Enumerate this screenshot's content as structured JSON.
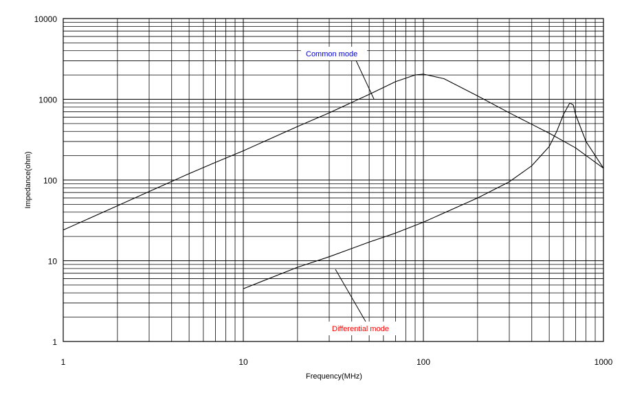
{
  "chart_data": {
    "type": "line",
    "xlabel": "Frequency(MHz)",
    "ylabel": "Impedance(ohm)",
    "xscale": "log",
    "yscale": "log",
    "xlim": [
      1,
      1000
    ],
    "ylim": [
      1,
      10000
    ],
    "grid": true,
    "xtick_labels": [
      "1",
      "10",
      "100",
      "1000"
    ],
    "ytick_labels": [
      "1",
      "10",
      "100",
      "1000",
      "10000"
    ],
    "series": [
      {
        "name": "Common mode",
        "color": "#000000",
        "x": [
          1,
          2,
          3,
          5,
          7,
          10,
          20,
          30,
          50,
          70,
          90,
          100,
          130,
          200,
          300,
          500,
          700,
          1000
        ],
        "y": [
          24,
          48,
          72,
          120,
          165,
          230,
          460,
          680,
          1150,
          1650,
          2000,
          2050,
          1800,
          1100,
          680,
          380,
          250,
          140
        ]
      },
      {
        "name": "Differential mode",
        "color": "#000000",
        "x": [
          10,
          20,
          30,
          50,
          70,
          100,
          200,
          300,
          400,
          500,
          550,
          600,
          650,
          680,
          700,
          800,
          1000
        ],
        "y": [
          4.5,
          8.3,
          11.2,
          17,
          22,
          30,
          60,
          95,
          150,
          260,
          400,
          650,
          900,
          850,
          650,
          300,
          140
        ]
      }
    ],
    "annotations": [
      {
        "text": "Common mode",
        "color": "#0000cc"
      },
      {
        "text": "Differential mode",
        "color": "#ff0000"
      }
    ]
  }
}
